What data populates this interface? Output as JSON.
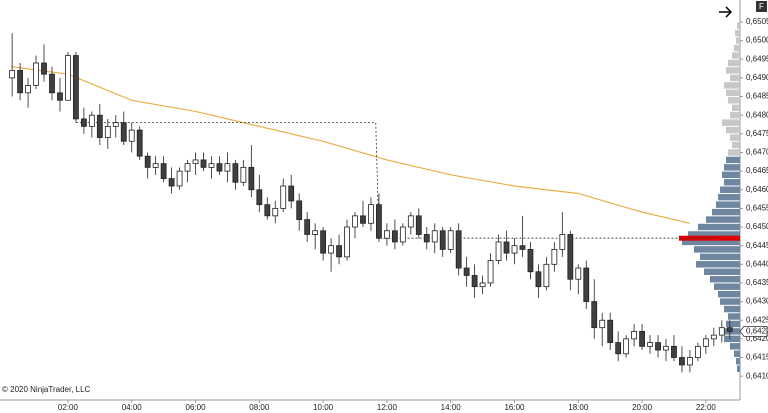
{
  "chart_data": {
    "type": "candlestick",
    "x": [
      0.25,
      0.5,
      0.75,
      1,
      1.25,
      1.5,
      1.75,
      2,
      2.25,
      2.5,
      2.75,
      3,
      3.25,
      3.5,
      3.75,
      4,
      4.25,
      4.5,
      4.75,
      5,
      5.25,
      5.5,
      5.75,
      6,
      6.25,
      6.5,
      6.75,
      7,
      7.25,
      7.5,
      7.75,
      8,
      8.25,
      8.5,
      8.75,
      9,
      9.25,
      9.5,
      9.75,
      10,
      10.25,
      10.5,
      10.75,
      11,
      11.25,
      11.5,
      11.75,
      12,
      12.25,
      12.5,
      12.75,
      13,
      13.25,
      13.5,
      13.75,
      14,
      14.25,
      14.5,
      14.75,
      15,
      15.25,
      15.5,
      15.75,
      16,
      16.25,
      16.5,
      16.75,
      17,
      17.25,
      17.5,
      17.75,
      18,
      18.25,
      18.5,
      18.75,
      19,
      19.25,
      19.5,
      19.75,
      20,
      20.25,
      20.5,
      20.75,
      21,
      21.25,
      21.5,
      21.75,
      22,
      22.25,
      22.5,
      22.75
    ],
    "open": [
      0.649,
      0.6492,
      0.6486,
      0.6488,
      0.6494,
      0.6491,
      0.6486,
      0.6484,
      0.6496,
      0.6479,
      0.6477,
      0.648,
      0.6474,
      0.6477,
      0.6478,
      0.6473,
      0.6476,
      0.6469,
      0.6466,
      0.6467,
      0.6463,
      0.6461,
      0.6465,
      0.6467,
      0.6468,
      0.6466,
      0.6467,
      0.6465,
      0.6467,
      0.6462,
      0.6466,
      0.646,
      0.6456,
      0.6453,
      0.6455,
      0.6461,
      0.6457,
      0.6452,
      0.6448,
      0.6449,
      0.6443,
      0.6445,
      0.6442,
      0.645,
      0.6453,
      0.6451,
      0.6456,
      0.6447,
      0.6449,
      0.6446,
      0.645,
      0.6453,
      0.6448,
      0.6446,
      0.6449,
      0.6444,
      0.6449,
      0.6439,
      0.6437,
      0.6434,
      0.6435,
      0.6441,
      0.6446,
      0.6443,
      0.6445,
      0.6444,
      0.6438,
      0.6434,
      0.644,
      0.6444,
      0.6448,
      0.6436,
      0.6439,
      0.643,
      0.6423,
      0.6425,
      0.6419,
      0.6416,
      0.642,
      0.6422,
      0.6418,
      0.6419,
      0.6417,
      0.6418,
      0.6415,
      0.6413,
      0.6415,
      0.6418,
      0.642,
      0.6421,
      0.6423
    ],
    "high": [
      0.6502,
      0.6494,
      0.649,
      0.6496,
      0.6499,
      0.6493,
      0.649,
      0.6497,
      0.6497,
      0.6482,
      0.6481,
      0.6483,
      0.6479,
      0.648,
      0.6481,
      0.6478,
      0.6477,
      0.647,
      0.6469,
      0.6469,
      0.6466,
      0.6466,
      0.6468,
      0.647,
      0.647,
      0.6469,
      0.6469,
      0.647,
      0.6468,
      0.6468,
      0.6472,
      0.6464,
      0.6458,
      0.6457,
      0.6463,
      0.6464,
      0.6459,
      0.6454,
      0.6451,
      0.645,
      0.6447,
      0.6448,
      0.6452,
      0.6454,
      0.6457,
      0.6458,
      0.6459,
      0.6451,
      0.6452,
      0.6451,
      0.6454,
      0.6455,
      0.645,
      0.6451,
      0.645,
      0.645,
      0.6451,
      0.6442,
      0.644,
      0.6437,
      0.6443,
      0.6448,
      0.6449,
      0.6447,
      0.6453,
      0.6446,
      0.644,
      0.6442,
      0.6446,
      0.6454,
      0.6449,
      0.644,
      0.6441,
      0.6436,
      0.6427,
      0.6427,
      0.6422,
      0.6421,
      0.6424,
      0.6424,
      0.6421,
      0.6421,
      0.642,
      0.6421,
      0.6418,
      0.6417,
      0.6419,
      0.6421,
      0.6423,
      0.6425,
      0.6425
    ],
    "low": [
      0.6485,
      0.6484,
      0.6482,
      0.6487,
      0.6489,
      0.6484,
      0.6481,
      0.6484,
      0.6478,
      0.6475,
      0.6474,
      0.6472,
      0.6471,
      0.6474,
      0.6472,
      0.647,
      0.6468,
      0.6463,
      0.6464,
      0.6462,
      0.6459,
      0.646,
      0.6462,
      0.6464,
      0.6465,
      0.6463,
      0.6464,
      0.6462,
      0.646,
      0.6461,
      0.6458,
      0.6454,
      0.6452,
      0.6451,
      0.6454,
      0.6455,
      0.6449,
      0.6446,
      0.6444,
      0.6441,
      0.6438,
      0.644,
      0.6441,
      0.6447,
      0.645,
      0.6449,
      0.6446,
      0.6445,
      0.6444,
      0.6445,
      0.6448,
      0.6447,
      0.6444,
      0.6443,
      0.6442,
      0.6443,
      0.6437,
      0.6434,
      0.6431,
      0.6432,
      0.6434,
      0.644,
      0.6441,
      0.644,
      0.6442,
      0.6436,
      0.6431,
      0.6433,
      0.6438,
      0.6442,
      0.6433,
      0.6432,
      0.6428,
      0.642,
      0.6418,
      0.6417,
      0.6414,
      0.6415,
      0.6418,
      0.6417,
      0.6416,
      0.6415,
      0.6414,
      0.6414,
      0.6411,
      0.6411,
      0.6414,
      0.6416,
      0.6418,
      0.6419,
      0.642
    ],
    "close": [
      0.6492,
      0.6486,
      0.6488,
      0.6494,
      0.6491,
      0.6486,
      0.6484,
      0.6496,
      0.6479,
      0.6477,
      0.648,
      0.6474,
      0.6477,
      0.6478,
      0.6473,
      0.6476,
      0.6469,
      0.6466,
      0.6467,
      0.6463,
      0.6461,
      0.6465,
      0.6467,
      0.6468,
      0.6466,
      0.6467,
      0.6465,
      0.6467,
      0.6462,
      0.6466,
      0.646,
      0.6456,
      0.6453,
      0.6455,
      0.6461,
      0.6457,
      0.6452,
      0.6448,
      0.6449,
      0.6443,
      0.6445,
      0.6442,
      0.645,
      0.6453,
      0.6451,
      0.6456,
      0.6447,
      0.6449,
      0.6446,
      0.645,
      0.6453,
      0.6448,
      0.6446,
      0.6449,
      0.6444,
      0.6449,
      0.6439,
      0.6437,
      0.6434,
      0.6435,
      0.6441,
      0.6446,
      0.6443,
      0.6445,
      0.6444,
      0.6438,
      0.6434,
      0.644,
      0.6444,
      0.6448,
      0.6436,
      0.6439,
      0.643,
      0.6423,
      0.6425,
      0.6419,
      0.6416,
      0.642,
      0.6422,
      0.6418,
      0.6419,
      0.6417,
      0.6418,
      0.6415,
      0.6413,
      0.6415,
      0.6418,
      0.642,
      0.6421,
      0.6423,
      0.6422
    ],
    "up_color": "#ffffff",
    "down_color": "#404040",
    "outline_color": "#222222",
    "lines": [
      {
        "color": "#e8b04a",
        "dash": false,
        "x": [
          0.25,
          2,
          4,
          6,
          8,
          10,
          12,
          14,
          16,
          18,
          20,
          21.5
        ],
        "values": [
          0.6493,
          0.6491,
          0.6484,
          0.6481,
          0.6477,
          0.6473,
          0.6468,
          0.6464,
          0.6461,
          0.6459,
          0.6454,
          0.6451
        ]
      },
      {
        "color": "#333333",
        "dash": true,
        "x": [
          2.25,
          11.65,
          11.75,
          22.25
        ],
        "values": [
          0.6478,
          0.6478,
          0.6447,
          0.6447
        ]
      }
    ],
    "profile": [
      {
        "color": "#c8c8c8",
        "prices": [
          0.6504,
          0.6502,
          0.65,
          0.6498,
          0.6496,
          0.6494,
          0.6492,
          0.649,
          0.6488,
          0.6486,
          0.6484,
          0.6482,
          0.648,
          0.6478,
          0.6476,
          0.6474,
          0.6472,
          0.647
        ],
        "volumes": [
          3,
          5,
          4,
          6,
          8,
          12,
          14,
          10,
          16,
          14,
          12,
          8,
          10,
          18,
          14,
          10,
          8,
          12
        ]
      },
      {
        "color": "#6f86a0",
        "prices": [
          0.6468,
          0.6466,
          0.6464,
          0.6462,
          0.646,
          0.6458,
          0.6456,
          0.6454,
          0.6452,
          0.645,
          0.6448,
          0.6446,
          0.6444,
          0.6442,
          0.644,
          0.6438,
          0.6436,
          0.6434,
          0.6432,
          0.643,
          0.6428,
          0.6426,
          0.6424,
          0.6422,
          0.642,
          0.6418,
          0.6416,
          0.6414,
          0.6412
        ],
        "volumes": [
          14,
          16,
          18,
          16,
          20,
          22,
          24,
          28,
          34,
          42,
          52,
          58,
          46,
          40,
          44,
          36,
          30,
          26,
          22,
          20,
          16,
          12,
          14,
          18,
          16,
          10,
          6,
          4,
          3
        ]
      }
    ],
    "poc": 0.6447,
    "poc_color": "#e00000",
    "last_price": {
      "value": 0.6422,
      "label": "0,6422"
    },
    "xlim": [
      -0.13,
      23.07
    ],
    "ylim": [
      0.64036,
      0.65109
    ],
    "xticks": [
      {
        "value": 2,
        "label": "02:00"
      },
      {
        "value": 4,
        "label": "04:00"
      },
      {
        "value": 6,
        "label": "06:00"
      },
      {
        "value": 8,
        "label": "08:00"
      },
      {
        "value": 10,
        "label": "10:00"
      },
      {
        "value": 12,
        "label": "12:00"
      },
      {
        "value": 14,
        "label": "14:00"
      },
      {
        "value": 16,
        "label": "16:00"
      },
      {
        "value": 18,
        "label": "18:00"
      },
      {
        "value": 20,
        "label": "20:00"
      },
      {
        "value": 22,
        "label": "22:00"
      }
    ],
    "yticks": [
      {
        "value": 0.641,
        "label": "0,6410"
      },
      {
        "value": 0.6415,
        "label": "0,6415"
      },
      {
        "value": 0.642,
        "label": "0,6420"
      },
      {
        "value": 0.6425,
        "label": "0,6425"
      },
      {
        "value": 0.643,
        "label": "0,6430"
      },
      {
        "value": 0.6435,
        "label": "0,6435"
      },
      {
        "value": 0.644,
        "label": "0,6440"
      },
      {
        "value": 0.6445,
        "label": "0,6445"
      },
      {
        "value": 0.645,
        "label": "0,6450"
      },
      {
        "value": 0.6455,
        "label": "0,6455"
      },
      {
        "value": 0.646,
        "label": "0,6460"
      },
      {
        "value": 0.6465,
        "label": "0,6465"
      },
      {
        "value": 0.647,
        "label": "0,6470"
      },
      {
        "value": 0.6475,
        "label": "0,6475"
      },
      {
        "value": 0.648,
        "label": "0,6480"
      },
      {
        "value": 0.6485,
        "label": "0,6485"
      },
      {
        "value": 0.649,
        "label": "0,6490"
      },
      {
        "value": 0.6495,
        "label": "0,6495"
      },
      {
        "value": 0.65,
        "label": "0,6500"
      },
      {
        "value": 0.6505,
        "label": "0,6505"
      }
    ],
    "copyright": "© 2020 NinjaTrader, LLC",
    "badge": "F"
  }
}
